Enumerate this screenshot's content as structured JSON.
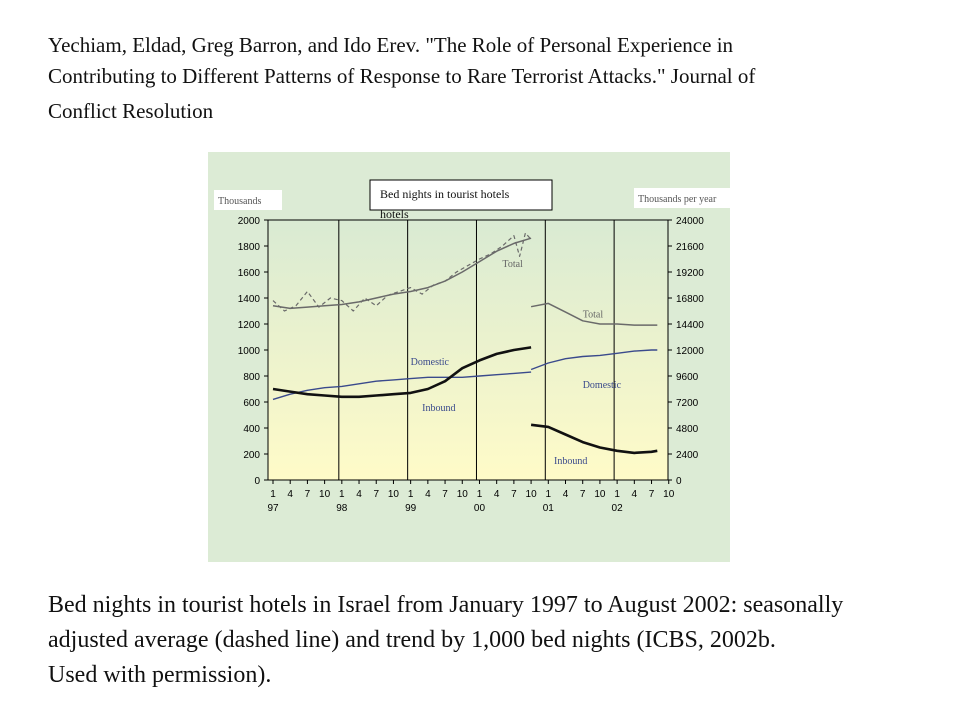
{
  "citation": {
    "line1": "Yechiam, Eldad, Greg Barron, and Ido Erev. \"The Role of Personal Experience in",
    "line2": "Contributing to Different Patterns of Response to Rare Terrorist Attacks.\" Journal of",
    "line3": "Conflict Resolution"
  },
  "caption": {
    "line1": "Bed nights in tourist hotels in Israel from January 1997 to August 2002: seasonally",
    "line2": "adjusted average (dashed line) and trend by 1,000 bed nights (ICBS, 2002b.",
    "line3": "Used with permission)."
  },
  "chart_data": {
    "type": "line",
    "title": "Bed nights in tourist hotels",
    "ylabel_left": "Thousands",
    "ylabel_right": "Thousands per year",
    "ylim_left": [
      0,
      2000
    ],
    "yticks_left": [
      "0",
      "200",
      "400",
      "600",
      "800",
      "1000",
      "1200",
      "1400",
      "1600",
      "1800",
      "2000"
    ],
    "ylim_right": [
      0,
      24000
    ],
    "yticks_right": [
      "0",
      "2400",
      "4800",
      "7200",
      "9600",
      "12000",
      "14400",
      "16800",
      "19200",
      "21600",
      "24000"
    ],
    "x_month_ticks": [
      "1",
      "4",
      "7",
      "10",
      "1",
      "4",
      "7",
      "10",
      "1",
      "4",
      "7",
      "10",
      "1",
      "4",
      "7",
      "10",
      "1",
      "4",
      "7",
      "10",
      "1",
      "4",
      "7",
      "10"
    ],
    "x_year_ticks": [
      "97",
      "98",
      "99",
      "00",
      "01",
      "02"
    ],
    "grid": false,
    "annotations": [
      "Total",
      "Domestic",
      "Inbound",
      "Total",
      "Domestic",
      "Inbound"
    ],
    "colors": {
      "total": "#555555",
      "domestic": "#3a4a8c",
      "inbound": "#111111",
      "background_top": "#d9ead3",
      "background_bottom": "#fffbc8"
    },
    "series": [
      {
        "name": "Total",
        "style": "trend",
        "x": [
          "1997-01",
          "1997-04",
          "1997-07",
          "1997-10",
          "1998-01",
          "1998-04",
          "1998-07",
          "1998-10",
          "1999-01",
          "1999-04",
          "1999-07",
          "1999-10",
          "2000-01",
          "2000-04",
          "2000-07",
          "2000-10"
        ],
        "values": [
          1340,
          1320,
          1330,
          1340,
          1350,
          1370,
          1400,
          1430,
          1450,
          1480,
          1530,
          1600,
          1680,
          1760,
          1820,
          1860
        ]
      },
      {
        "name": "Total",
        "style": "seasonally-adjusted",
        "x": [
          "1997-01",
          "1997-03",
          "1997-05",
          "1997-07",
          "1997-09",
          "1997-11",
          "1998-01",
          "1998-03",
          "1998-05",
          "1998-07",
          "1998-09",
          "1998-11",
          "1999-01",
          "1999-03",
          "1999-05",
          "1999-07",
          "1999-09",
          "1999-11",
          "2000-01",
          "2000-03",
          "2000-05",
          "2000-07",
          "2000-08",
          "2000-09",
          "2000-10"
        ],
        "values": [
          1380,
          1300,
          1340,
          1450,
          1330,
          1400,
          1380,
          1300,
          1400,
          1340,
          1420,
          1450,
          1480,
          1430,
          1500,
          1530,
          1600,
          1650,
          1700,
          1740,
          1800,
          1880,
          1720,
          1900,
          1850
        ]
      },
      {
        "name": "Domestic",
        "style": "trend",
        "x": [
          "1997-01",
          "1997-04",
          "1997-07",
          "1997-10",
          "1998-01",
          "1998-04",
          "1998-07",
          "1998-10",
          "1999-01",
          "1999-04",
          "1999-07",
          "1999-10",
          "2000-01",
          "2000-04",
          "2000-07",
          "2000-10"
        ],
        "values": [
          620,
          660,
          690,
          710,
          720,
          740,
          760,
          770,
          780,
          790,
          790,
          790,
          800,
          810,
          820,
          830
        ]
      },
      {
        "name": "Inbound",
        "style": "trend",
        "x": [
          "1997-01",
          "1997-04",
          "1997-07",
          "1997-10",
          "1998-01",
          "1998-04",
          "1998-07",
          "1998-10",
          "1999-01",
          "1999-04",
          "1999-07",
          "1999-10",
          "2000-01",
          "2000-04",
          "2000-07",
          "2000-10"
        ],
        "values": [
          700,
          680,
          660,
          650,
          640,
          640,
          650,
          660,
          670,
          700,
          760,
          860,
          920,
          970,
          1000,
          1020
        ]
      },
      {
        "name": "Total",
        "style": "trend",
        "x": [
          "2000-10",
          "2001-01",
          "2001-04",
          "2001-07",
          "2001-10",
          "2002-01",
          "2002-04",
          "2002-07",
          "2002-08"
        ],
        "values": [
          16000,
          16300,
          15500,
          14700,
          14400,
          14400,
          14300,
          14300,
          14300
        ]
      },
      {
        "name": "Domestic",
        "style": "trend",
        "x": [
          "2000-10",
          "2001-01",
          "2001-04",
          "2001-07",
          "2001-10",
          "2002-01",
          "2002-04",
          "2002-07",
          "2002-08"
        ],
        "values": [
          10200,
          10800,
          11200,
          11400,
          11500,
          11700,
          11900,
          12000,
          12000
        ]
      },
      {
        "name": "Inbound",
        "style": "trend",
        "x": [
          "2000-10",
          "2001-01",
          "2001-04",
          "2001-07",
          "2001-10",
          "2002-01",
          "2002-04",
          "2002-07",
          "2002-08"
        ],
        "values": [
          5100,
          4900,
          4200,
          3500,
          3000,
          2700,
          2500,
          2600,
          2700
        ]
      }
    ]
  }
}
